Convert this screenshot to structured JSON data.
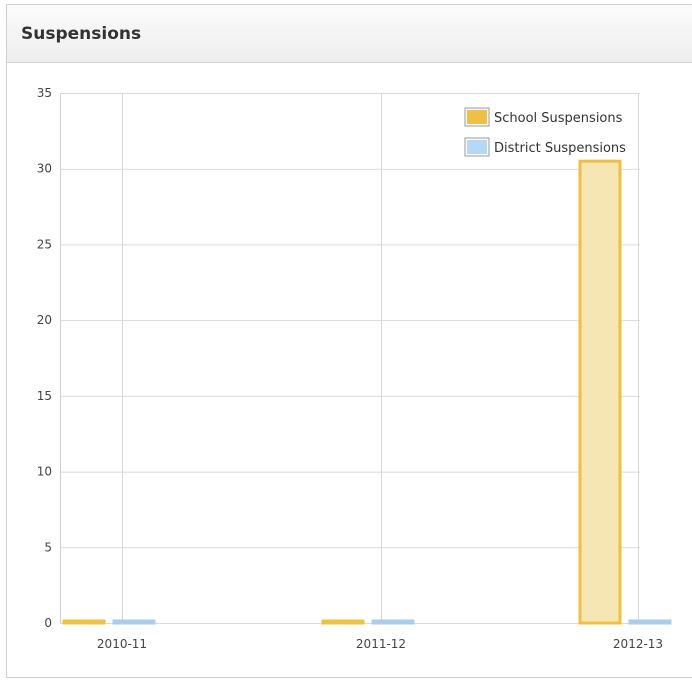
{
  "panel": {
    "title": "Suspensions"
  },
  "chart_data": {
    "type": "bar",
    "title": "",
    "xlabel": "",
    "ylabel": "",
    "categories": [
      "2010-11",
      "2011-12",
      "2012-13"
    ],
    "series": [
      {
        "name": "School Suspensions",
        "values": [
          0,
          0,
          30.5
        ]
      },
      {
        "name": "District Suspensions",
        "values": [
          0,
          0,
          0
        ]
      }
    ],
    "ylim": [
      0,
      35
    ],
    "yticks": [
      0,
      5,
      10,
      15,
      20,
      25,
      30,
      35
    ],
    "grid": true,
    "legend": "top-right",
    "colors": {
      "school_fill": "#f5e6b3",
      "school_stroke": "#eec046",
      "school_legend": "#eec046",
      "district_fill": "#cfe5f7",
      "district_stroke": "#a9cdeb",
      "district_legend": "#b5d8f6"
    }
  }
}
